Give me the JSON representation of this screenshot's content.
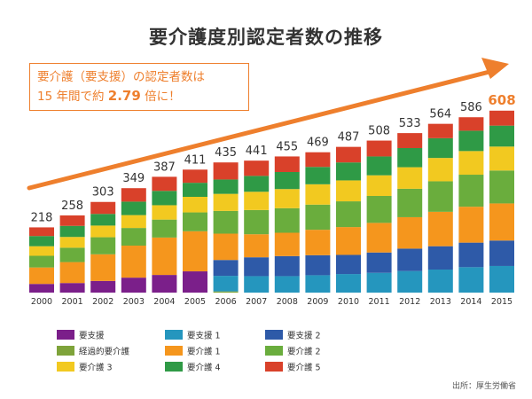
{
  "title": "要介護度別認定者数の推移",
  "callout": {
    "line1": "要介護（要支援）の認定者数は",
    "line2_prefix": "15 年間で約 ",
    "line2_value": "2.79",
    "line2_suffix": " 倍に！"
  },
  "source": "出所：厚生労働省",
  "colors": {
    "accent": "#ee7f2d",
    "要支援": "#7b1f8a",
    "経過的要介護": "#7ea33a",
    "要支援1": "#2596be",
    "要支援2": "#2e5aa8",
    "要介護1": "#f5961d",
    "要介護2": "#6aad3d",
    "要介護3": "#f2c920",
    "要介護4": "#2f9a46",
    "要介護5": "#d9412a"
  },
  "chart_data": {
    "type": "bar",
    "stacked": true,
    "title": "要介護度別認定者数の推移",
    "xlabel": "",
    "ylabel": "",
    "ylim": [
      0,
      700
    ],
    "categories": [
      "2000",
      "2001",
      "2002",
      "2003",
      "2004",
      "2005",
      "2006",
      "2007",
      "2008",
      "2009",
      "2010",
      "2011",
      "2012",
      "2013",
      "2014",
      "2015"
    ],
    "totals": [
      218,
      258,
      303,
      349,
      387,
      411,
      435,
      441,
      455,
      469,
      487,
      508,
      533,
      564,
      586,
      608
    ],
    "highlight_last_total": true,
    "series": [
      {
        "name": "要支援",
        "key": "要支援",
        "values": [
          29,
          32,
          39,
          50,
          59,
          71,
          0,
          0,
          0,
          0,
          0,
          0,
          0,
          0,
          0,
          0
        ]
      },
      {
        "name": "経過的要介護",
        "key": "経過的要介護",
        "values": [
          0,
          0,
          0,
          0,
          0,
          0,
          4,
          0,
          0,
          0,
          0,
          0,
          0,
          0,
          0,
          0
        ]
      },
      {
        "name": "要支援 1",
        "key": "要支援1",
        "values": [
          0,
          0,
          0,
          0,
          0,
          0,
          52,
          55,
          55,
          58,
          62,
          66,
          72,
          77,
          85,
          89
        ]
      },
      {
        "name": "要支援 2",
        "key": "要支援2",
        "values": [
          0,
          0,
          0,
          0,
          0,
          0,
          53,
          63,
          67,
          67,
          64,
          68,
          75,
          78,
          82,
          85
        ]
      },
      {
        "name": "要介護 1",
        "key": "要介護1",
        "values": [
          55,
          70,
          89,
          107,
          125,
          134,
          88,
          77,
          78,
          85,
          93,
          99,
          105,
          115,
          120,
          124
        ]
      },
      {
        "name": "要介護 2",
        "key": "要介護2",
        "values": [
          39,
          48,
          57,
          59,
          60,
          63,
          76,
          81,
          82,
          84,
          86,
          90,
          95,
          102,
          107,
          110
        ]
      },
      {
        "name": "要介護 3",
        "key": "要介護3",
        "values": [
          32,
          36,
          39,
          43,
          48,
          52,
          57,
          61,
          64,
          68,
          70,
          69,
          72,
          78,
          79,
          80
        ]
      },
      {
        "name": "要介護 4",
        "key": "要介護4",
        "values": [
          34,
          37,
          39,
          45,
          48,
          47,
          48,
          53,
          57,
          58,
          60,
          63,
          64,
          66,
          68,
          70
        ]
      },
      {
        "name": "要介護 5",
        "key": "要介護5",
        "values": [
          29,
          35,
          40,
          45,
          47,
          44,
          57,
          51,
          52,
          49,
          52,
          53,
          50,
          48,
          45,
          50
        ]
      }
    ],
    "legend": {
      "placement": "bottom",
      "columns": [
        [
          "要支援",
          "経過的要介護",
          "要介護3"
        ],
        [
          "要支援1",
          "要介護1",
          "要介護4"
        ],
        [
          "要支援2",
          "要介護2",
          "要介護5"
        ]
      ]
    }
  }
}
